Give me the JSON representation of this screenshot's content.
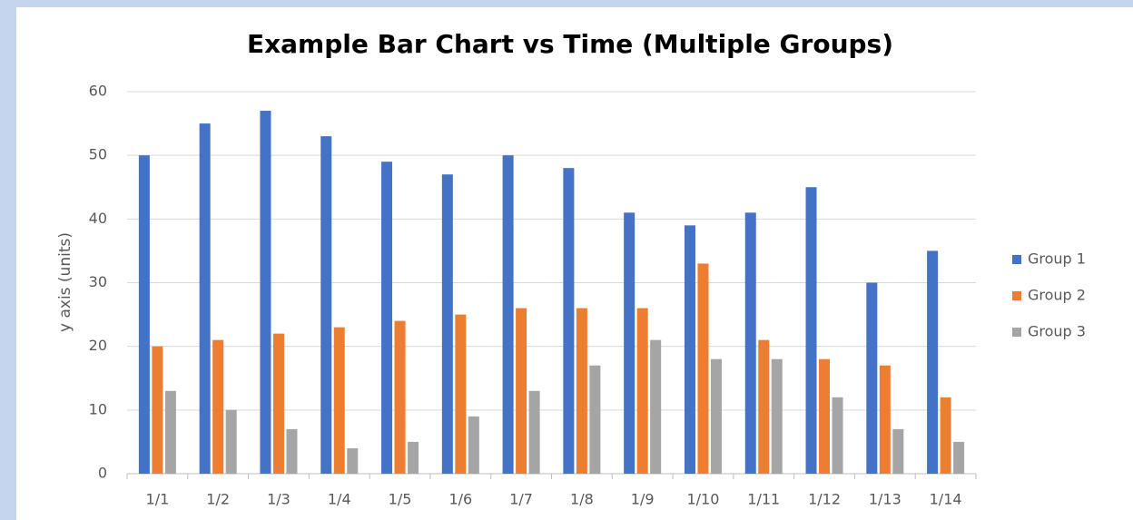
{
  "chart_data": {
    "type": "bar",
    "title": "Example Bar Chart vs Time (Multiple Groups)",
    "y_label": "y axis (units)",
    "categories": [
      "1/1",
      "1/2",
      "1/3",
      "1/4",
      "1/5",
      "1/6",
      "1/7",
      "1/8",
      "1/9",
      "1/10",
      "1/11",
      "1/12",
      "1/13",
      "1/14"
    ],
    "series": [
      {
        "name": "Group 1",
        "color": "#4472c4",
        "values": [
          50,
          55,
          57,
          53,
          49,
          47,
          50,
          48,
          41,
          39,
          41,
          45,
          30,
          35
        ]
      },
      {
        "name": "Group 2",
        "color": "#ed7d31",
        "values": [
          20,
          21,
          22,
          23,
          24,
          25,
          26,
          26,
          26,
          33,
          21,
          18,
          17,
          12
        ]
      },
      {
        "name": "Group 3",
        "color": "#a5a5a5",
        "values": [
          13,
          10,
          7,
          4,
          5,
          9,
          13,
          17,
          21,
          18,
          18,
          12,
          7,
          5
        ]
      }
    ],
    "ylim": [
      0,
      60
    ],
    "yticks": [
      0,
      10,
      20,
      30,
      40,
      50,
      60
    ],
    "grid": true,
    "legend": "right"
  }
}
